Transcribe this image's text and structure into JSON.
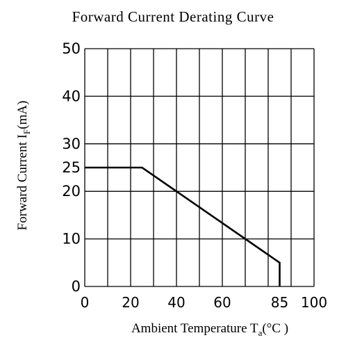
{
  "chart_data": {
    "type": "line",
    "title": "Forward Current Derating Curve",
    "xlabel": {
      "prefix": "Ambient Temperature T",
      "subscript": "a",
      "suffix": "(°C )"
    },
    "ylabel": {
      "prefix": "Forward Current    I",
      "subscript": "F",
      "suffix": "(mA)"
    },
    "xlim": [
      0,
      100
    ],
    "ylim": [
      0,
      50
    ],
    "grid": true,
    "x_ticks": [
      {
        "value": 0,
        "label": "0"
      },
      {
        "value": 20,
        "label": "20"
      },
      {
        "value": 40,
        "label": "40"
      },
      {
        "value": 60,
        "label": "60"
      },
      {
        "value": 85,
        "label": "85"
      },
      {
        "value": 100,
        "label": "100"
      }
    ],
    "y_ticks": [
      {
        "value": 0,
        "label": "0"
      },
      {
        "value": 10,
        "label": "10"
      },
      {
        "value": 20,
        "label": "20"
      },
      {
        "value": 25,
        "label": "25"
      },
      {
        "value": 30,
        "label": "30"
      },
      {
        "value": 40,
        "label": "40"
      },
      {
        "value": 50,
        "label": "50"
      }
    ],
    "x_gridlines": [
      0,
      10,
      20,
      30,
      40,
      50,
      60,
      70,
      80,
      90,
      100
    ],
    "y_gridlines": [
      0,
      10,
      20,
      30,
      40,
      50
    ],
    "series": [
      {
        "color": "#000000",
        "x": [
          0,
          25,
          85,
          85
        ],
        "y": [
          25,
          25,
          5,
          0
        ]
      }
    ]
  }
}
